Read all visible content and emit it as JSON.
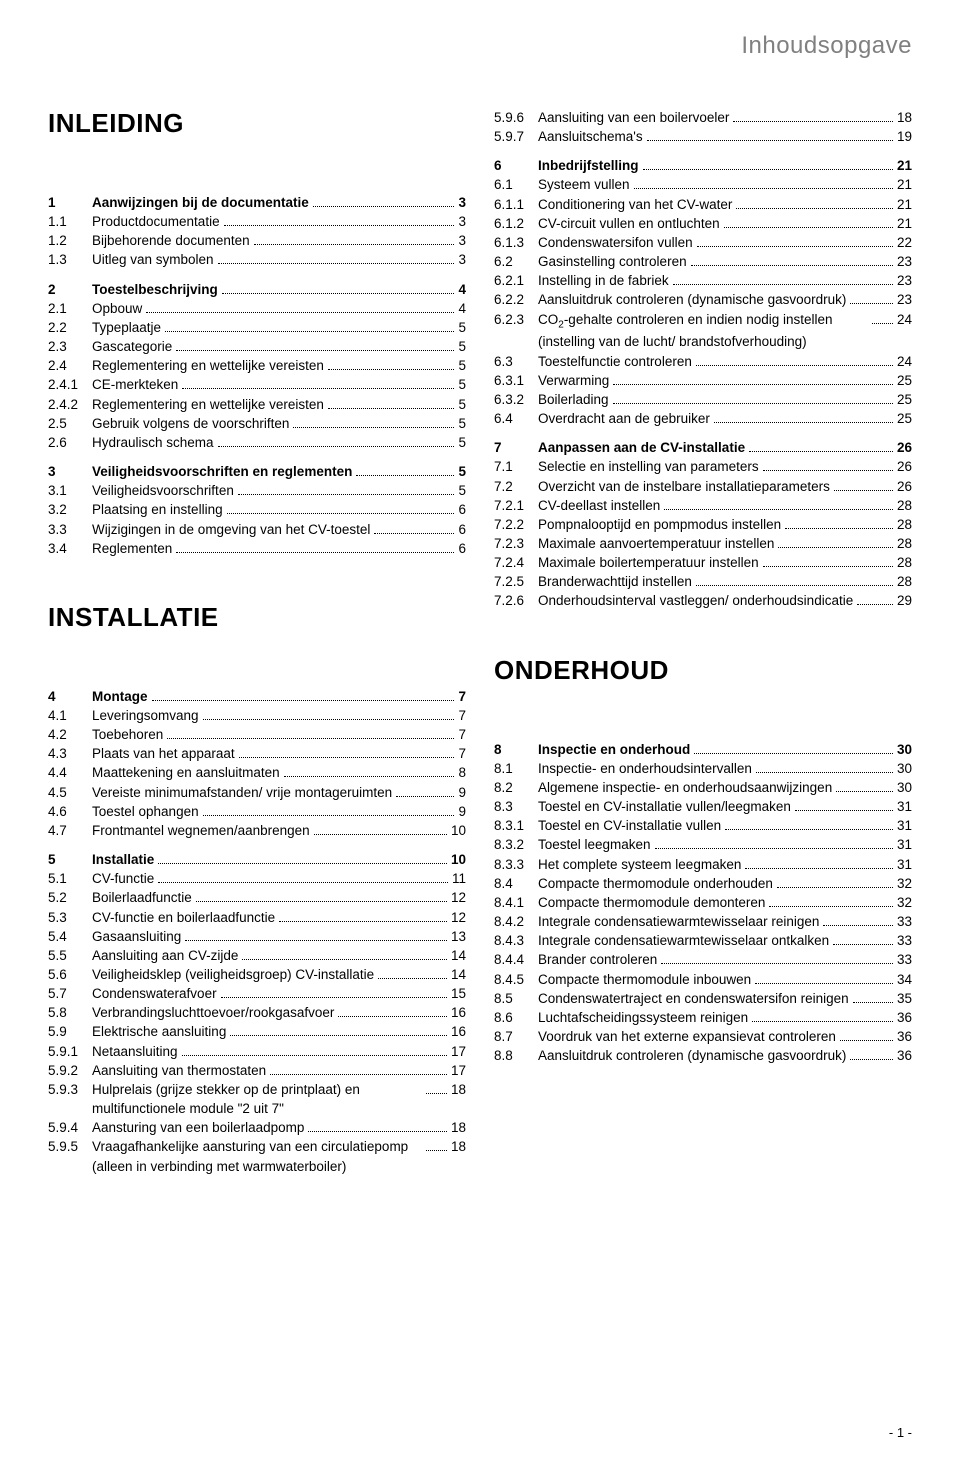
{
  "page": {
    "header": "Inhoudsopgave",
    "footer": "- 1 -",
    "colors": {
      "header_gray": "#808080",
      "text": "#000000",
      "bg": "#ffffff"
    },
    "font_sizes": {
      "header": 24,
      "section": 26,
      "body": 13.5,
      "footer": 13
    }
  },
  "left_blocks": [
    {
      "type": "section",
      "text": "INLEIDING"
    },
    {
      "type": "spacer",
      "size": "md"
    },
    {
      "type": "row",
      "bold": true,
      "num": "1",
      "label": "Aanwijzingen bij de documentatie",
      "page": "3"
    },
    {
      "type": "row",
      "bold": false,
      "num": "1.1",
      "label": "Productdocumentatie",
      "page": "3"
    },
    {
      "type": "row",
      "bold": false,
      "num": "1.2",
      "label": "Bijbehorende documenten",
      "page": "3"
    },
    {
      "type": "row",
      "bold": false,
      "num": "1.3",
      "label": "Uitleg van symbolen",
      "page": "3"
    },
    {
      "type": "spacer",
      "size": "sm"
    },
    {
      "type": "row",
      "bold": true,
      "num": "2",
      "label": "Toestelbeschrijving",
      "page": "4"
    },
    {
      "type": "row",
      "bold": false,
      "num": "2.1",
      "label": "Opbouw",
      "page": "4"
    },
    {
      "type": "row",
      "bold": false,
      "num": "2.2",
      "label": "Typeplaatje",
      "page": "5"
    },
    {
      "type": "row",
      "bold": false,
      "num": "2.3",
      "label": "Gascategorie",
      "page": "5"
    },
    {
      "type": "row",
      "bold": false,
      "num": "2.4",
      "label": "Reglementering en wettelijke vereisten",
      "page": "5"
    },
    {
      "type": "row",
      "bold": false,
      "num": "2.4.1",
      "label": "CE-merkteken",
      "page": "5"
    },
    {
      "type": "row",
      "bold": false,
      "num": "2.4.2",
      "label": "Reglementering en wettelijke vereisten",
      "page": "5"
    },
    {
      "type": "row",
      "bold": false,
      "num": "2.5",
      "label": "Gebruik volgens de voorschriften",
      "page": "5"
    },
    {
      "type": "row",
      "bold": false,
      "num": "2.6",
      "label": "Hydraulisch schema",
      "page": "5"
    },
    {
      "type": "spacer",
      "size": "sm"
    },
    {
      "type": "row",
      "bold": true,
      "num": "3",
      "label": "Veiligheidsvoorschriften en reglementen",
      "page": "5"
    },
    {
      "type": "row",
      "bold": false,
      "num": "3.1",
      "label": "Veiligheidsvoorschriften",
      "page": "5"
    },
    {
      "type": "row",
      "bold": false,
      "num": "3.2",
      "label": "Plaatsing en instelling",
      "page": "6"
    },
    {
      "type": "row",
      "bold": false,
      "num": "3.3",
      "label": "Wijzigingen in de omgeving van het CV-toestel",
      "page": "6"
    },
    {
      "type": "row",
      "bold": false,
      "num": "3.4",
      "label": "Reglementen",
      "page": "6"
    },
    {
      "type": "spacer",
      "size": "lg"
    },
    {
      "type": "section",
      "text": "INSTALLATIE"
    },
    {
      "type": "spacer",
      "size": "md"
    },
    {
      "type": "row",
      "bold": true,
      "num": "4",
      "label": "Montage",
      "page": "7"
    },
    {
      "type": "row",
      "bold": false,
      "num": "4.1",
      "label": "Leveringsomvang",
      "page": "7"
    },
    {
      "type": "row",
      "bold": false,
      "num": "4.2",
      "label": "Toebehoren",
      "page": "7"
    },
    {
      "type": "row",
      "bold": false,
      "num": "4.3",
      "label": "Plaats van het apparaat",
      "page": "7"
    },
    {
      "type": "row",
      "bold": false,
      "num": "4.4",
      "label": "Maattekening en aansluitmaten",
      "page": "8"
    },
    {
      "type": "row",
      "bold": false,
      "num": "4.5",
      "label": "Vereiste minimumafstanden/ vrije montageruimten",
      "page": "9"
    },
    {
      "type": "row",
      "bold": false,
      "num": "4.6",
      "label": "Toestel ophangen",
      "page": "9"
    },
    {
      "type": "row",
      "bold": false,
      "num": "4.7",
      "label": "Frontmantel wegnemen/aanbrengen",
      "page": "10"
    },
    {
      "type": "spacer",
      "size": "sm"
    },
    {
      "type": "row",
      "bold": true,
      "num": "5",
      "label": "Installatie",
      "page": "10"
    },
    {
      "type": "row",
      "bold": false,
      "num": "5.1",
      "label": "CV-functie",
      "page": "11"
    },
    {
      "type": "row",
      "bold": false,
      "num": "5.2",
      "label": "Boilerlaadfunctie",
      "page": "12"
    },
    {
      "type": "row",
      "bold": false,
      "num": "5.3",
      "label": "CV-functie en boilerlaadfunctie",
      "page": "12"
    },
    {
      "type": "row",
      "bold": false,
      "num": "5.4",
      "label": "Gasaansluiting",
      "page": "13"
    },
    {
      "type": "row",
      "bold": false,
      "num": "5.5",
      "label": "Aansluiting aan CV-zijde",
      "page": "14"
    },
    {
      "type": "row",
      "bold": false,
      "num": "5.6",
      "label": "Veiligheidsklep (veiligheidsgroep) CV-installatie",
      "page": "14"
    },
    {
      "type": "row",
      "bold": false,
      "num": "5.7",
      "label": "Condenswaterafvoer",
      "page": "15"
    },
    {
      "type": "row",
      "bold": false,
      "num": "5.8",
      "label": "Verbrandingsluchttoevoer/rookgasafvoer",
      "page": "16"
    },
    {
      "type": "row",
      "bold": false,
      "num": "5.9",
      "label": "Elektrische aansluiting",
      "page": "16"
    },
    {
      "type": "row",
      "bold": false,
      "num": "5.9.1",
      "label": "Netaansluiting",
      "page": "17"
    },
    {
      "type": "row",
      "bold": false,
      "num": "5.9.2",
      "label": "Aansluiting van thermostaten",
      "page": "17"
    },
    {
      "type": "row",
      "bold": false,
      "num": "5.9.3",
      "label": "Hulprelais (grijze stekker op de printplaat) en multifunctionele module \"2 uit 7\"",
      "page": "18"
    },
    {
      "type": "row",
      "bold": false,
      "num": "5.9.4",
      "label": "Aansturing van een boilerlaadpomp",
      "page": "18"
    },
    {
      "type": "row",
      "bold": false,
      "num": "5.9.5",
      "label": "Vraagafhankelijke aansturing van een circulatiepomp (alleen in verbinding met warmwaterboiler)",
      "page": "18"
    }
  ],
  "right_blocks": [
    {
      "type": "row",
      "bold": false,
      "num": "5.9.6",
      "label": "Aansluiting van een boilervoeler",
      "page": "18"
    },
    {
      "type": "row",
      "bold": false,
      "num": "5.9.7",
      "label": "Aansluitschema's",
      "page": "19"
    },
    {
      "type": "spacer",
      "size": "sm"
    },
    {
      "type": "row",
      "bold": true,
      "num": "6",
      "label": "Inbedrijfstelling",
      "page": "21"
    },
    {
      "type": "row",
      "bold": false,
      "num": "6.1",
      "label": "Systeem vullen",
      "page": "21"
    },
    {
      "type": "row",
      "bold": false,
      "num": "6.1.1",
      "label": "Conditionering van het CV-water",
      "page": "21"
    },
    {
      "type": "row",
      "bold": false,
      "num": "6.1.2",
      "label": "CV-circuit vullen en ontluchten",
      "page": "21"
    },
    {
      "type": "row",
      "bold": false,
      "num": "6.1.3",
      "label": "Condenswatersifon vullen",
      "page": "22"
    },
    {
      "type": "row",
      "bold": false,
      "num": "6.2",
      "label": "Gasinstelling controleren",
      "page": "23"
    },
    {
      "type": "row",
      "bold": false,
      "num": "6.2.1",
      "label": "Instelling in de fabriek",
      "page": "23"
    },
    {
      "type": "row",
      "bold": false,
      "num": "6.2.2",
      "label": "Aansluitdruk controleren (dynamische gasvoordruk)",
      "page": "23"
    },
    {
      "type": "row_html",
      "bold": false,
      "num": "6.2.3",
      "label_html": "CO<sub>2</sub>-gehalte controleren en indien nodig instellen (instelling van de lucht/ brandstofverhouding)",
      "page": "24"
    },
    {
      "type": "row",
      "bold": false,
      "num": "6.3",
      "label": "Toestelfunctie controleren",
      "page": "24"
    },
    {
      "type": "row",
      "bold": false,
      "num": "6.3.1",
      "label": "Verwarming",
      "page": "25"
    },
    {
      "type": "row",
      "bold": false,
      "num": "6.3.2",
      "label": "Boilerlading",
      "page": "25"
    },
    {
      "type": "row",
      "bold": false,
      "num": "6.4",
      "label": "Overdracht aan de gebruiker",
      "page": "25"
    },
    {
      "type": "spacer",
      "size": "sm"
    },
    {
      "type": "row",
      "bold": true,
      "num": "7",
      "label": "Aanpassen aan de CV-installatie",
      "page": "26"
    },
    {
      "type": "row",
      "bold": false,
      "num": "7.1",
      "label": "Selectie en instelling van parameters",
      "page": "26"
    },
    {
      "type": "row",
      "bold": false,
      "num": "7.2",
      "label": "Overzicht van de instelbare installatieparameters",
      "page": "26"
    },
    {
      "type": "row",
      "bold": false,
      "num": "7.2.1",
      "label": "CV-deellast instellen",
      "page": "28"
    },
    {
      "type": "row",
      "bold": false,
      "num": "7.2.2",
      "label": "Pompnalooptijd en pompmodus instellen",
      "page": "28"
    },
    {
      "type": "row",
      "bold": false,
      "num": "7.2.3",
      "label": "Maximale aanvoertemperatuur instellen",
      "page": "28"
    },
    {
      "type": "row",
      "bold": false,
      "num": "7.2.4",
      "label": "Maximale boilertemperatuur instellen",
      "page": "28"
    },
    {
      "type": "row",
      "bold": false,
      "num": "7.2.5",
      "label": "Branderwachttijd instellen",
      "page": "28"
    },
    {
      "type": "row",
      "bold": false,
      "num": "7.2.6",
      "label": "Onderhoudsinterval vastleggen/ onderhoudsindicatie",
      "page": "29"
    },
    {
      "type": "spacer",
      "size": "lg"
    },
    {
      "type": "section",
      "text": "ONDERHOUD"
    },
    {
      "type": "spacer",
      "size": "md"
    },
    {
      "type": "row",
      "bold": true,
      "num": "8",
      "label": "Inspectie en onderhoud",
      "page": "30"
    },
    {
      "type": "row",
      "bold": false,
      "num": "8.1",
      "label": "Inspectie- en onderhoudsintervallen",
      "page": "30"
    },
    {
      "type": "row",
      "bold": false,
      "num": "8.2",
      "label": "Algemene inspectie- en onderhoudsaanwijzingen",
      "page": "30"
    },
    {
      "type": "row",
      "bold": false,
      "num": "8.3",
      "label": "Toestel en CV-installatie vullen/leegmaken",
      "page": "31"
    },
    {
      "type": "row",
      "bold": false,
      "num": "8.3.1",
      "label": "Toestel en CV-installatie vullen",
      "page": "31"
    },
    {
      "type": "row",
      "bold": false,
      "num": "8.3.2",
      "label": "Toestel leegmaken",
      "page": "31"
    },
    {
      "type": "row",
      "bold": false,
      "num": "8.3.3",
      "label": "Het complete systeem leegmaken",
      "page": "31"
    },
    {
      "type": "row",
      "bold": false,
      "num": "8.4",
      "label": "Compacte thermomodule onderhouden",
      "page": "32"
    },
    {
      "type": "row",
      "bold": false,
      "num": "8.4.1",
      "label": "Compacte thermomodule demonteren",
      "page": "32"
    },
    {
      "type": "row",
      "bold": false,
      "num": "8.4.2",
      "label": "Integrale condensatiewarmtewisselaar reinigen",
      "page": "33"
    },
    {
      "type": "row",
      "bold": false,
      "num": "8.4.3",
      "label": "Integrale condensatiewarmtewisselaar ontkalken",
      "page": "33"
    },
    {
      "type": "row",
      "bold": false,
      "num": "8.4.4",
      "label": "Brander controleren",
      "page": "33"
    },
    {
      "type": "row",
      "bold": false,
      "num": "8.4.5",
      "label": "Compacte thermomodule inbouwen",
      "page": "34"
    },
    {
      "type": "row",
      "bold": false,
      "num": "8.5",
      "label": "Condenswatertraject en condenswatersifon reinigen",
      "page": "35"
    },
    {
      "type": "row",
      "bold": false,
      "num": "8.6",
      "label": "Luchtafscheidingssysteem reinigen",
      "page": "36"
    },
    {
      "type": "row",
      "bold": false,
      "num": "8.7",
      "label": "Voordruk van het externe expansievat controleren",
      "page": "36"
    },
    {
      "type": "row",
      "bold": false,
      "num": "8.8",
      "label": "Aansluitdruk controleren (dynamische gasvoordruk)",
      "page": "36"
    }
  ]
}
